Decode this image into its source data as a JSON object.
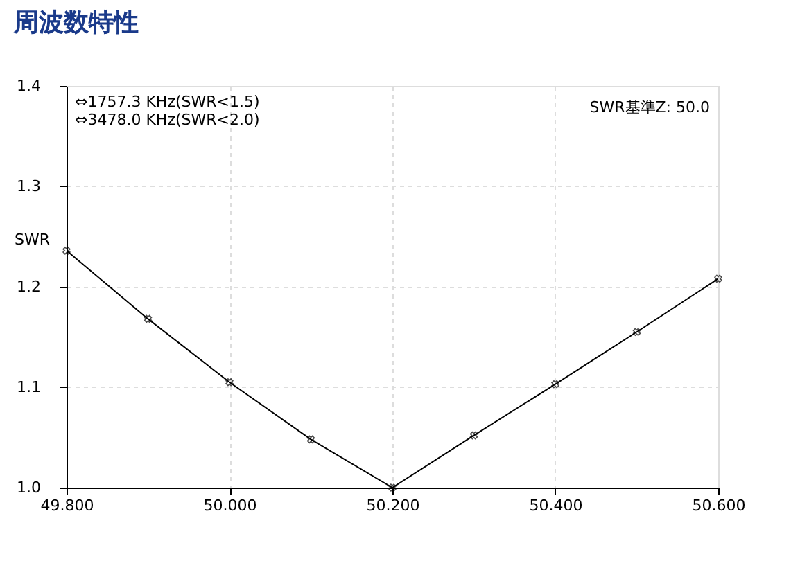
{
  "chart_data": {
    "type": "line",
    "title": "周波数特性",
    "ylabel": "SWR",
    "x": [
      49.8,
      49.9,
      50.0,
      50.1,
      50.2,
      50.3,
      50.4,
      50.5,
      50.6
    ],
    "series": [
      {
        "color": "#000000",
        "values": [
          1.236,
          1.168,
          1.105,
          1.048,
          1.0,
          1.052,
          1.103,
          1.155,
          1.208
        ]
      }
    ],
    "xlim": [
      49.8,
      50.6
    ],
    "xticks": [
      {
        "value": 49.8,
        "label": "49.800"
      },
      {
        "value": 50.0,
        "label": "50.000"
      },
      {
        "value": 50.2,
        "label": "50.200"
      },
      {
        "value": 50.4,
        "label": "50.400"
      },
      {
        "value": 50.6,
        "label": "50.600"
      }
    ],
    "ylim": [
      1.0,
      1.4
    ],
    "yticks": [
      {
        "value": 1.0,
        "label": "1.0"
      },
      {
        "value": 1.1,
        "label": "1.1"
      },
      {
        "value": 1.2,
        "label": "1.2"
      },
      {
        "value": 1.3,
        "label": "1.3"
      },
      {
        "value": 1.4,
        "label": "1.4"
      }
    ],
    "annotations": [
      "⇔1757.3 KHz(SWR<1.5)",
      "⇔3478.0 KHz(SWR<2.0)",
      "SWR基準Z: 50.0"
    ],
    "grid": true,
    "marker": "cross",
    "line_style": "solid"
  }
}
